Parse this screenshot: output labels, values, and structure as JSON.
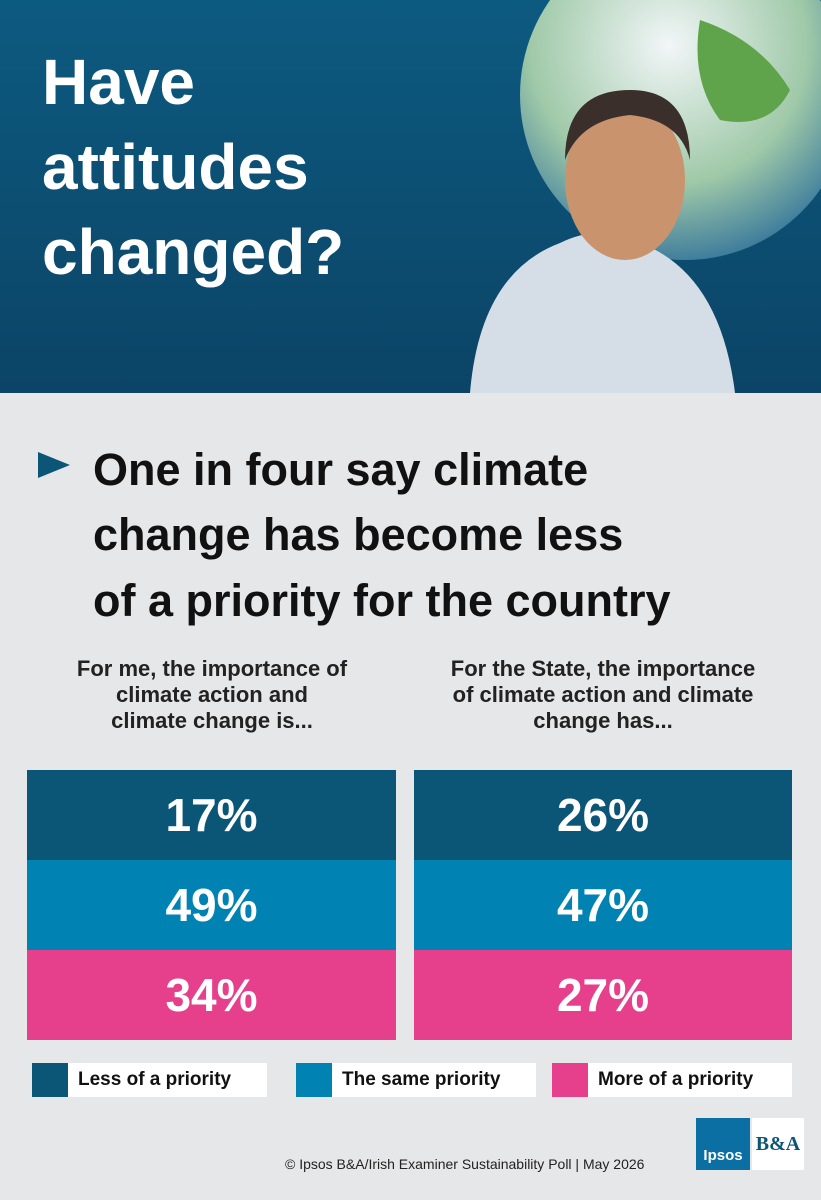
{
  "header": {
    "title": [
      "Have",
      "attitudes",
      "changed?"
    ]
  },
  "headline": [
    "One in four say climate",
    "change has become less",
    "of a priority for the country"
  ],
  "columns": [
    {
      "caption": [
        "For me, the importance of",
        "climate action and",
        "climate change is..."
      ],
      "cells": [
        "17%",
        "49%",
        "34%"
      ]
    },
    {
      "caption": [
        "For the State, the importance",
        "of climate action and climate",
        "change has..."
      ],
      "cells": [
        "26%",
        "47%",
        "27%"
      ]
    }
  ],
  "legend": [
    "Less of a priority",
    "The same priority",
    "More of a priority"
  ],
  "footer": "© Ipsos B&A/Irish Examiner Sustainability Poll | May 2026",
  "logos": [
    "Ipsos",
    "B&A"
  ]
}
